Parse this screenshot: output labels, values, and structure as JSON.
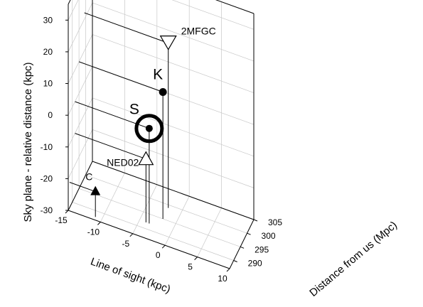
{
  "chart_data": {
    "type": "scatter",
    "axes": {
      "x": {
        "label": "Line  of  sight  (kpc)",
        "range": [
          -15,
          10
        ],
        "ticks": [
          -15,
          -10,
          -5,
          0,
          5,
          10
        ]
      },
      "y": {
        "label": "Distance  from  us  (Mpc)",
        "range": [
          287,
          305
        ],
        "ticks": [
          290,
          295,
          300,
          305
        ]
      },
      "z": {
        "label": "Sky plane - relative distance  (kpc)",
        "range": [
          -30,
          35
        ],
        "ticks": [
          -30,
          -20,
          -10,
          0,
          10,
          20,
          30
        ]
      }
    },
    "grid": true,
    "points": [
      {
        "name": "S",
        "marker": "filled-circle-ring",
        "x": -3.5,
        "y": 292.0,
        "z": 0.0
      },
      {
        "name": "K",
        "marker": "filled-circle",
        "x": -2.0,
        "y": 295.0,
        "z": 10.0
      },
      {
        "name": "2MFGC",
        "marker": "open-triangle-down",
        "x": -2.0,
        "y": 299.0,
        "z": 22.0
      },
      {
        "name": "NED02",
        "marker": "open-triangle-up",
        "x": -4.0,
        "y": 292.0,
        "z": -10.0
      },
      {
        "name": "C",
        "marker": "filled-triangle-up",
        "x": -11.0,
        "y": 288.0,
        "z": -22.0
      }
    ]
  }
}
